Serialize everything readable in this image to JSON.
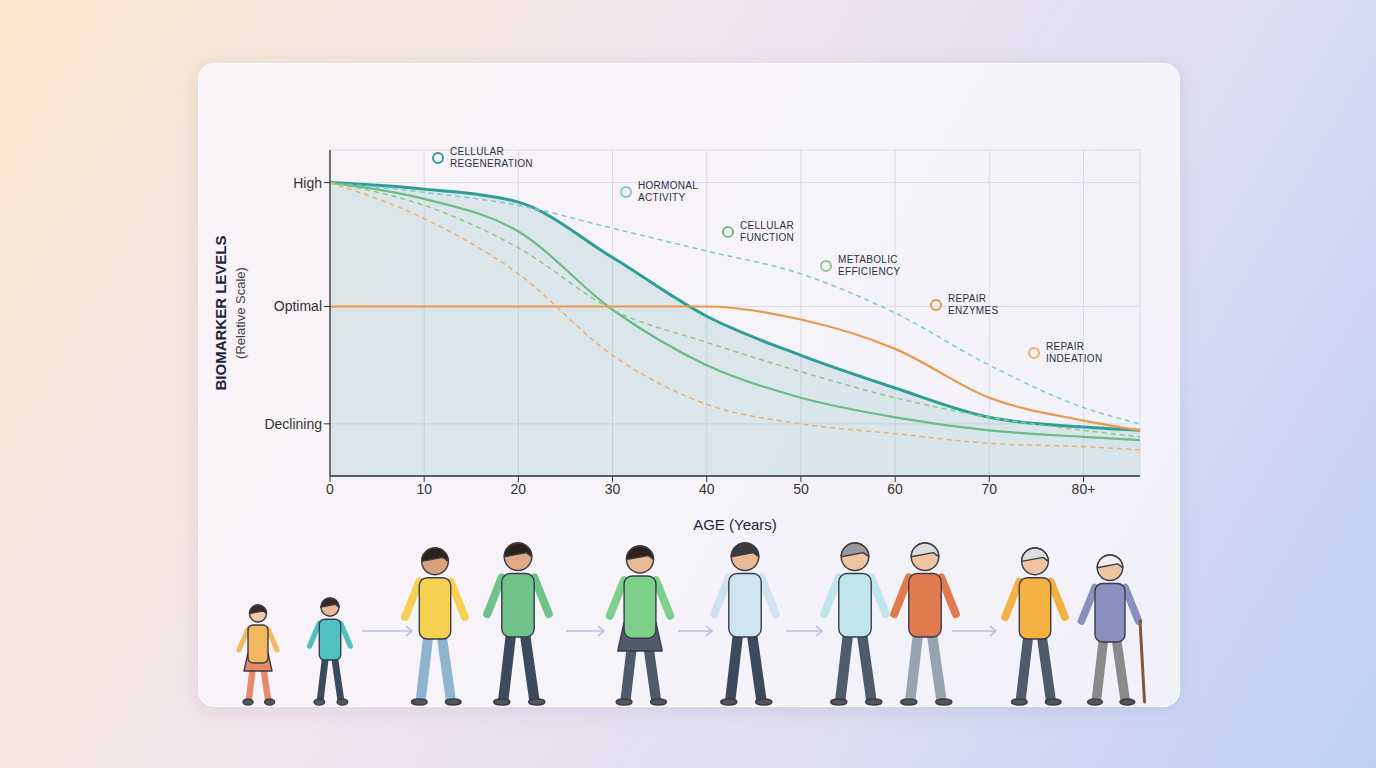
{
  "chart_data": {
    "type": "line",
    "x_label": "AGE (Years)",
    "y_label": "BIOMARKER LEVELS",
    "y_sublabel": "(Relative Scale)",
    "x": [
      0,
      10,
      20,
      30,
      40,
      50,
      60,
      70,
      80,
      86
    ],
    "xlim": [
      0,
      86
    ],
    "xticks": [
      0,
      10,
      20,
      30,
      40,
      50,
      60,
      70,
      {
        "value": 80,
        "label": "80+"
      }
    ],
    "ylim": [
      0,
      100
    ],
    "yticks": [
      {
        "value": 16,
        "label": "Declining"
      },
      {
        "value": 52,
        "label": "Optimal"
      },
      {
        "value": 90,
        "label": "High"
      }
    ],
    "grid": true,
    "series": [
      {
        "name": "CELLULAR REGENERATION",
        "type": "area",
        "color": "#2f9e96",
        "line_style": "solid",
        "values": [
          90,
          88,
          84,
          67,
          49,
          37,
          27,
          18,
          15,
          14
        ]
      },
      {
        "name": "HORMONAL ACTIVITY",
        "type": "line",
        "color": "#7cc9d0",
        "line_style": "dashed",
        "values": [
          90,
          87,
          83,
          76,
          69,
          62,
          50,
          34,
          21,
          16
        ]
      },
      {
        "name": "CELLULAR FUNCTION",
        "type": "line",
        "color": "#6dbb86",
        "line_style": "solid",
        "values": [
          90,
          85,
          75,
          51,
          34,
          24,
          18,
          14,
          12,
          11
        ]
      },
      {
        "name": "METABOLIC EFFICIENCY",
        "type": "line",
        "color": "#8cc98e",
        "line_style": "dashed",
        "values": [
          90,
          83,
          70,
          51,
          41,
          32,
          24,
          18,
          14,
          12
        ]
      },
      {
        "name": "REPAIR ENZYMES",
        "type": "line",
        "color": "#e89a4c",
        "line_style": "solid",
        "values": [
          52,
          52,
          52,
          52,
          52,
          48,
          39,
          24,
          17,
          14
        ]
      },
      {
        "name": "REPAIR INDEATION",
        "type": "line",
        "color": "#f0b070",
        "line_style": "dashed",
        "values": [
          90,
          79,
          62,
          37,
          22,
          16,
          13,
          10,
          9,
          8
        ]
      }
    ]
  }
}
